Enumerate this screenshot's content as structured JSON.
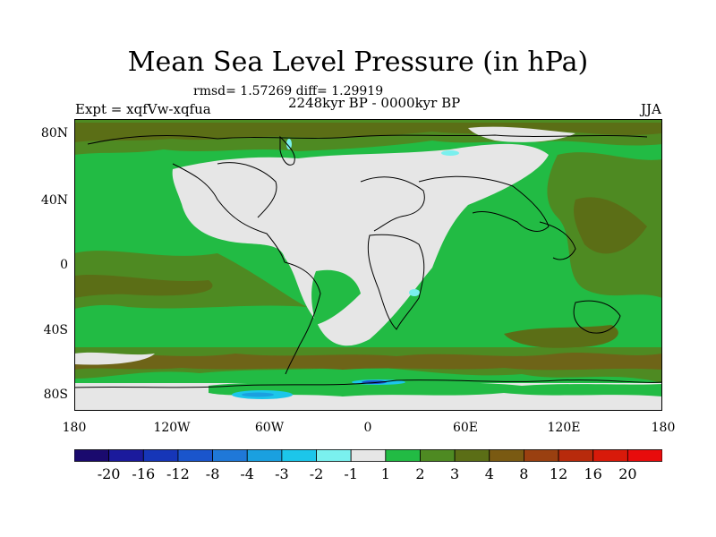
{
  "title": "Mean Sea Level Pressure (in hPa)",
  "stats": "rmsd= 1.57269 diff= 1.29919",
  "period": "2248kyr BP - 0000kyr BP",
  "experiment": "Expt = xqfVw-xqfua",
  "season": "JJA",
  "lat_labels": [
    "80N",
    "40N",
    "0",
    "40S",
    "80S"
  ],
  "lon_labels": [
    "180",
    "120W",
    "60W",
    "0",
    "60E",
    "120E",
    "180"
  ],
  "colorbar": {
    "labels": [
      "-20",
      "-16",
      "-12",
      "-8",
      "-4",
      "-3",
      "-2",
      "-1",
      "1",
      "2",
      "3",
      "4",
      "8",
      "12",
      "16",
      "20"
    ],
    "colors": [
      "#1a0a6e",
      "#1b1a9c",
      "#1636b8",
      "#1a55cc",
      "#1f78d8",
      "#1aa0e0",
      "#1cc6ea",
      "#7af0ee",
      "#e6e6e6",
      "#22bb44",
      "#4e8a22",
      "#5b6e16",
      "#7a5a12",
      "#9a4010",
      "#b82a0c",
      "#d81a0a",
      "#e80c0c"
    ]
  },
  "legend_colors": {
    "ocean_positive": "#22bb44",
    "land_neutral": "#e6e6e6",
    "high_anomaly": "#4e8a22",
    "strong_anomaly": "#6e6418",
    "negative_anomaly": "#1cc6ea"
  }
}
